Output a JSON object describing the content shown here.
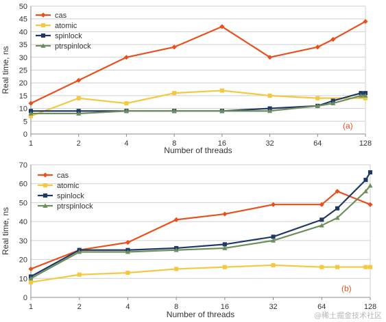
{
  "watermark": "@稀土掘金技术社区",
  "chart_data": [
    {
      "type": "line",
      "panel_label": "(a)",
      "xlabel": "Number of threads",
      "ylabel": "Real time, ns",
      "x_ticks": [
        "1",
        "2",
        "4",
        "8",
        "16",
        "32",
        "64",
        "128"
      ],
      "x_scale": "log2",
      "ylim": [
        0,
        50
      ],
      "y_ticks": [
        "0",
        "5",
        "10",
        "15",
        "20",
        "25",
        "30",
        "35",
        "40",
        "45",
        "50"
      ],
      "grid": "horizontal",
      "legend_position": "top-left",
      "series": [
        {
          "name": "cas",
          "color": "#e8501e",
          "marker": "diamond",
          "x": [
            1,
            2,
            4,
            8,
            16,
            32,
            64,
            80,
            128
          ],
          "y": [
            12,
            21,
            30,
            34,
            42,
            30,
            34,
            37,
            44
          ]
        },
        {
          "name": "atomic",
          "color": "#f5c842",
          "marker": "square",
          "x": [
            1,
            2,
            4,
            8,
            16,
            32,
            64,
            128
          ],
          "y": [
            7,
            14,
            12,
            16,
            17,
            15,
            14,
            14
          ]
        },
        {
          "name": "spinlock",
          "color": "#1f3864",
          "marker": "square",
          "x": [
            1,
            2,
            4,
            8,
            16,
            32,
            64,
            80,
            120,
            128
          ],
          "y": [
            9,
            9,
            9,
            9,
            9,
            10,
            11,
            13,
            16,
            16
          ]
        },
        {
          "name": "ptrspinlock",
          "color": "#6b8e5a",
          "marker": "triangle",
          "x": [
            1,
            2,
            4,
            8,
            16,
            32,
            64,
            80,
            120,
            128
          ],
          "y": [
            8,
            8,
            9,
            9,
            9,
            9,
            11,
            12,
            15,
            15
          ]
        }
      ]
    },
    {
      "type": "line",
      "panel_label": "(b)",
      "xlabel": "Number of threads",
      "ylabel": "Real time, ns",
      "x_ticks": [
        "1",
        "2",
        "4",
        "8",
        "16",
        "32",
        "64",
        "128"
      ],
      "x_scale": "log2",
      "ylim": [
        0,
        70
      ],
      "y_ticks": [
        "0",
        "10",
        "20",
        "30",
        "40",
        "50",
        "60",
        "70"
      ],
      "grid": "horizontal",
      "legend_position": "top-left",
      "series": [
        {
          "name": "cas",
          "color": "#e8501e",
          "marker": "diamond",
          "x": [
            1,
            2,
            4,
            8,
            16,
            32,
            64,
            80,
            128
          ],
          "y": [
            15,
            25,
            29,
            41,
            44,
            49,
            49,
            56,
            49
          ]
        },
        {
          "name": "atomic",
          "color": "#f5c842",
          "marker": "square",
          "x": [
            1,
            2,
            4,
            8,
            16,
            32,
            64,
            80,
            120,
            128
          ],
          "y": [
            8,
            12,
            13,
            15,
            16,
            17,
            16,
            16,
            16,
            16
          ]
        },
        {
          "name": "spinlock",
          "color": "#1f3864",
          "marker": "square",
          "x": [
            1,
            2,
            4,
            8,
            16,
            32,
            64,
            80,
            120,
            128
          ],
          "y": [
            11,
            25,
            25,
            26,
            28,
            32,
            41,
            47,
            62,
            66
          ]
        },
        {
          "name": "ptrspinlock",
          "color": "#6b8e5a",
          "marker": "triangle",
          "x": [
            1,
            2,
            4,
            8,
            16,
            32,
            64,
            80,
            120,
            128
          ],
          "y": [
            10,
            24,
            24,
            25,
            26,
            30,
            38,
            42,
            56,
            59
          ]
        }
      ]
    }
  ]
}
